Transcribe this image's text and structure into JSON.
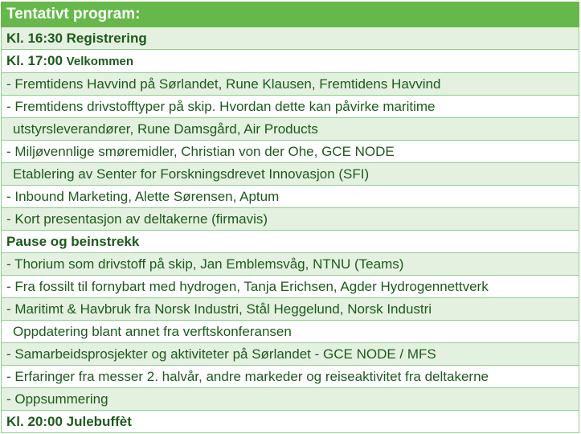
{
  "program": {
    "title": "Tentativt program:",
    "rows": [
      {
        "text": "Kl. 16:30 Registrering"
      },
      {
        "time": "Kl. 17:00",
        "label": "Velkommen"
      },
      {
        "text": "- Fremtidens Havvind på Sørlandet, Rune Klausen, Fremtidens Havvind"
      },
      {
        "text": "- Fremtidens drivstofftyper på skip. Hvordan dette kan påvirke maritime"
      },
      {
        "text": "utstyrsleverandører, Rune Damsgård, Air Products"
      },
      {
        "text": "- Miljøvennlige smøremidler, Christian von der Ohe, GCE NODE"
      },
      {
        "text": "Etablering av Senter for Forskningsdrevet Innovasjon (SFI)"
      },
      {
        "text": "- Inbound Marketing, Alette Sørensen, Aptum"
      },
      {
        "text": "- Kort presentasjon av deltakerne (firmavis)"
      },
      {
        "text": "Pause og beinstrekk"
      },
      {
        "text": "- Thorium som drivstoff på skip, Jan Emblemsvåg, NTNU (Teams)"
      },
      {
        "text": "- Fra fossilt til fornybart med hydrogen, Tanja Erichsen, Agder Hydrogennettverk"
      },
      {
        "text": "- Maritimt & Havbruk fra Norsk Industri, Stål Heggelund, Norsk Industri"
      },
      {
        "text": "Oppdatering blant annet fra verftskonferansen"
      },
      {
        "text": "- Samarbeidsprosjekter og aktiviteter på Sørlandet - GCE NODE / MFS"
      },
      {
        "text": "- Erfaringer fra messer 2. halvår, andre markeder og reiseaktivitet fra deltakerne"
      },
      {
        "text": "- Oppsummering"
      },
      {
        "text": "Kl. 20:00 Julebuffèt"
      }
    ]
  }
}
